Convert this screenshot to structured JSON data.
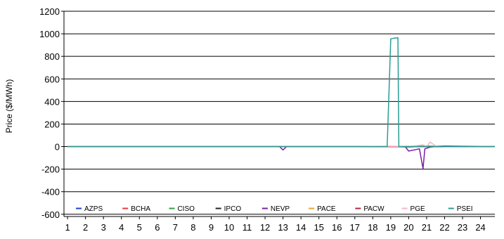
{
  "chart_data": {
    "type": "line",
    "title": "",
    "xlabel": "",
    "ylabel": "Price ($/MWh)",
    "xlim": [
      0.8,
      24.8
    ],
    "ylim": [
      -620,
      1200
    ],
    "x_ticks": [
      1,
      2,
      3,
      4,
      5,
      6,
      7,
      8,
      9,
      10,
      11,
      12,
      13,
      14,
      15,
      16,
      17,
      18,
      19,
      20,
      21,
      22,
      23,
      24
    ],
    "y_ticks": [
      -600,
      -400,
      -200,
      0,
      200,
      400,
      600,
      800,
      1000,
      1200
    ],
    "grid": "horizontal",
    "legend_position": "bottom-inside",
    "series": [
      {
        "name": "AZPS",
        "color": "#1f3fd6",
        "points": [
          [
            1,
            0
          ],
          [
            5,
            0
          ],
          [
            10,
            0
          ],
          [
            15,
            0
          ],
          [
            18,
            0
          ],
          [
            19,
            0
          ],
          [
            20,
            0
          ],
          [
            20.5,
            5
          ],
          [
            21,
            0
          ],
          [
            22,
            5
          ],
          [
            23,
            3
          ],
          [
            24,
            2
          ],
          [
            24.8,
            2
          ]
        ]
      },
      {
        "name": "BCHA",
        "color": "#e8383f",
        "points": [
          [
            1,
            0
          ],
          [
            5,
            0
          ],
          [
            10,
            0
          ],
          [
            15,
            0
          ],
          [
            18,
            0
          ],
          [
            19,
            0
          ],
          [
            20,
            0
          ],
          [
            21,
            0
          ],
          [
            22,
            0
          ],
          [
            23,
            0
          ],
          [
            24,
            0
          ],
          [
            24.8,
            0
          ]
        ]
      },
      {
        "name": "CISO",
        "color": "#2ea043",
        "points": [
          [
            1,
            0
          ],
          [
            5,
            0
          ],
          [
            10,
            0
          ],
          [
            15,
            0
          ],
          [
            18,
            0
          ],
          [
            19,
            0
          ],
          [
            20,
            -5
          ],
          [
            20.5,
            0
          ],
          [
            21,
            5
          ],
          [
            22,
            0
          ],
          [
            23,
            0
          ],
          [
            24,
            0
          ],
          [
            24.8,
            0
          ]
        ]
      },
      {
        "name": "IPCO",
        "color": "#222222",
        "points": [
          [
            1,
            0
          ],
          [
            5,
            0
          ],
          [
            10,
            0
          ],
          [
            15,
            0
          ],
          [
            18,
            0
          ],
          [
            19,
            0
          ],
          [
            20,
            0
          ],
          [
            21,
            0
          ],
          [
            22,
            0
          ],
          [
            23,
            0
          ],
          [
            24,
            0
          ],
          [
            24.8,
            0
          ]
        ]
      },
      {
        "name": "NEVP",
        "color": "#7a1fa2",
        "points": [
          [
            1,
            0
          ],
          [
            12.8,
            0
          ],
          [
            13,
            -30
          ],
          [
            13.2,
            0
          ],
          [
            19.8,
            0
          ],
          [
            20,
            -40
          ],
          [
            20.3,
            -30
          ],
          [
            20.6,
            -20
          ],
          [
            20.8,
            -195
          ],
          [
            20.9,
            -20
          ],
          [
            21.2,
            -5
          ],
          [
            21.5,
            0
          ],
          [
            24.8,
            0
          ]
        ]
      },
      {
        "name": "PACE",
        "color": "#f0a030",
        "points": [
          [
            1,
            0
          ],
          [
            5,
            0
          ],
          [
            10,
            0
          ],
          [
            15,
            0
          ],
          [
            18,
            0
          ],
          [
            19,
            0
          ],
          [
            20,
            0
          ],
          [
            21,
            0
          ],
          [
            22,
            0
          ],
          [
            23,
            0
          ],
          [
            24,
            0
          ],
          [
            24.8,
            0
          ]
        ]
      },
      {
        "name": "PACW",
        "color": "#b02a3a",
        "points": [
          [
            1,
            0
          ],
          [
            5,
            0
          ],
          [
            10,
            0
          ],
          [
            15,
            0
          ],
          [
            18,
            0
          ],
          [
            19,
            0
          ],
          [
            20,
            0
          ],
          [
            21,
            0
          ],
          [
            22,
            0
          ],
          [
            23,
            0
          ],
          [
            24,
            0
          ],
          [
            24.8,
            0
          ]
        ]
      },
      {
        "name": "PGE",
        "color": "#f4b6c2",
        "points": [
          [
            1,
            0
          ],
          [
            17,
            0
          ],
          [
            18,
            2
          ],
          [
            19,
            3
          ],
          [
            20,
            0
          ],
          [
            20.8,
            15
          ],
          [
            21,
            0
          ],
          [
            21.2,
            40
          ],
          [
            21.5,
            5
          ],
          [
            22,
            0
          ],
          [
            24.8,
            0
          ]
        ]
      },
      {
        "name": "PSEI",
        "color": "#2a9d95",
        "points": [
          [
            1,
            0
          ],
          [
            18.8,
            0
          ],
          [
            19,
            955
          ],
          [
            19.2,
            962
          ],
          [
            19.4,
            965
          ],
          [
            19.45,
            0
          ],
          [
            20,
            0
          ],
          [
            21,
            0
          ],
          [
            22,
            2
          ],
          [
            23,
            0
          ],
          [
            24,
            0
          ],
          [
            24.8,
            0
          ]
        ]
      }
    ]
  }
}
